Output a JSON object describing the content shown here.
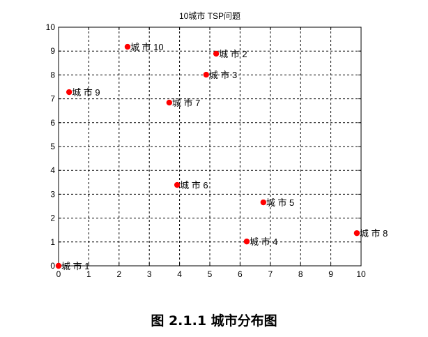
{
  "chart_data": {
    "type": "scatter",
    "title": "10城市 TSP问题",
    "xlabel": "",
    "ylabel": "",
    "xlim": [
      0,
      10
    ],
    "ylim": [
      0,
      10
    ],
    "xticks": [
      "0",
      "1",
      "2",
      "3",
      "4",
      "5",
      "6",
      "7",
      "8",
      "9",
      "10"
    ],
    "yticks": [
      "0",
      "1",
      "2",
      "3",
      "4",
      "5",
      "6",
      "7",
      "8",
      "9",
      "10"
    ],
    "grid": true,
    "grid_style": "dashed",
    "marker_color": "#ff0000",
    "legend": null,
    "points": [
      {
        "label": "城市1",
        "x": 0.0,
        "y": 0.0
      },
      {
        "label": "城市2",
        "x": 5.21,
        "y": 8.89
      },
      {
        "label": "城市3",
        "x": 4.88,
        "y": 8.01
      },
      {
        "label": "城市4",
        "x": 6.22,
        "y": 1.02
      },
      {
        "label": "城市5",
        "x": 6.77,
        "y": 2.66
      },
      {
        "label": "城市6",
        "x": 3.92,
        "y": 3.39
      },
      {
        "label": "城市7",
        "x": 3.66,
        "y": 6.84
      },
      {
        "label": "城市8",
        "x": 9.86,
        "y": 1.37
      },
      {
        "label": "城市9",
        "x": 0.35,
        "y": 7.28
      },
      {
        "label": "城市10",
        "x": 2.28,
        "y": 9.18
      }
    ]
  },
  "labels": {
    "city1": "城市1",
    "city2": "城市2",
    "city3": "城市3",
    "city4": "城市4",
    "city5": "城市5",
    "city6": "城市6",
    "city7": "城市7",
    "city8": "城市8",
    "city9": "城市9",
    "city10": "城市10"
  },
  "caption": "图 2.1.1  城市分布图"
}
